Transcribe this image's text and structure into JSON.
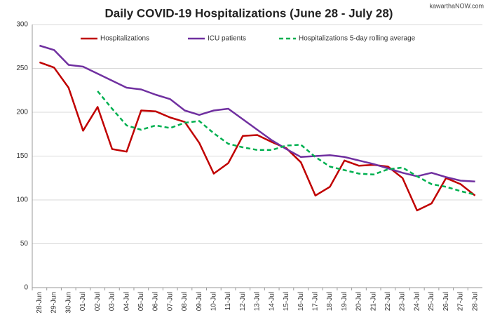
{
  "chart_data": {
    "type": "line",
    "title": "Daily COVID-19 Hospitalizations (June 28 - July 28)",
    "watermark": "kawarthaNOW.com",
    "categories": [
      "28-Jun",
      "29-Jun",
      "30-Jun",
      "01-Jul",
      "02-Jul",
      "03-Jul",
      "04-Jul",
      "05-Jul",
      "06-Jul",
      "07-Jul",
      "08-Jul",
      "09-Jul",
      "10-Jul",
      "11-Jul",
      "12-Jul",
      "13-Jul",
      "14-Jul",
      "15-Jul",
      "16-Jul",
      "17-Jul",
      "18-Jul",
      "19-Jul",
      "20-Jul",
      "21-Jul",
      "22-Jul",
      "23-Jul",
      "24-Jul",
      "25-Jul",
      "26-Jul",
      "27-Jul",
      "28-Jul"
    ],
    "series": [
      {
        "name": "Hospitalizations",
        "color": "#c00000",
        "dashed": false,
        "values": [
          257,
          251,
          228,
          179,
          206,
          158,
          155,
          202,
          201,
          194,
          189,
          165,
          130,
          142,
          173,
          174,
          166,
          159,
          143,
          105,
          115,
          145,
          139,
          140,
          138,
          125,
          88,
          96,
          125,
          118,
          105
        ]
      },
      {
        "name": "ICU patients",
        "color": "#7030a0",
        "dashed": false,
        "values": [
          276,
          271,
          254,
          252,
          244,
          236,
          228,
          226,
          220,
          215,
          202,
          197,
          202,
          204,
          192,
          180,
          168,
          158,
          149,
          150,
          151,
          149,
          145,
          141,
          136,
          131,
          127,
          131,
          126,
          122,
          121
        ]
      },
      {
        "name": "Hospitalizations 5-day rolling average",
        "color": "#00b050",
        "dashed": true,
        "values": [
          null,
          null,
          null,
          null,
          224,
          204,
          185,
          180,
          185,
          182,
          188,
          190,
          176,
          164,
          160,
          157,
          157,
          162,
          163,
          149,
          138,
          134,
          130,
          129,
          135,
          137,
          127,
          118,
          115,
          110,
          106
        ]
      }
    ],
    "ylim": [
      0,
      300
    ],
    "yticks": [
      0,
      50,
      100,
      150,
      200,
      250,
      300
    ],
    "grid": true,
    "legend": "top"
  }
}
